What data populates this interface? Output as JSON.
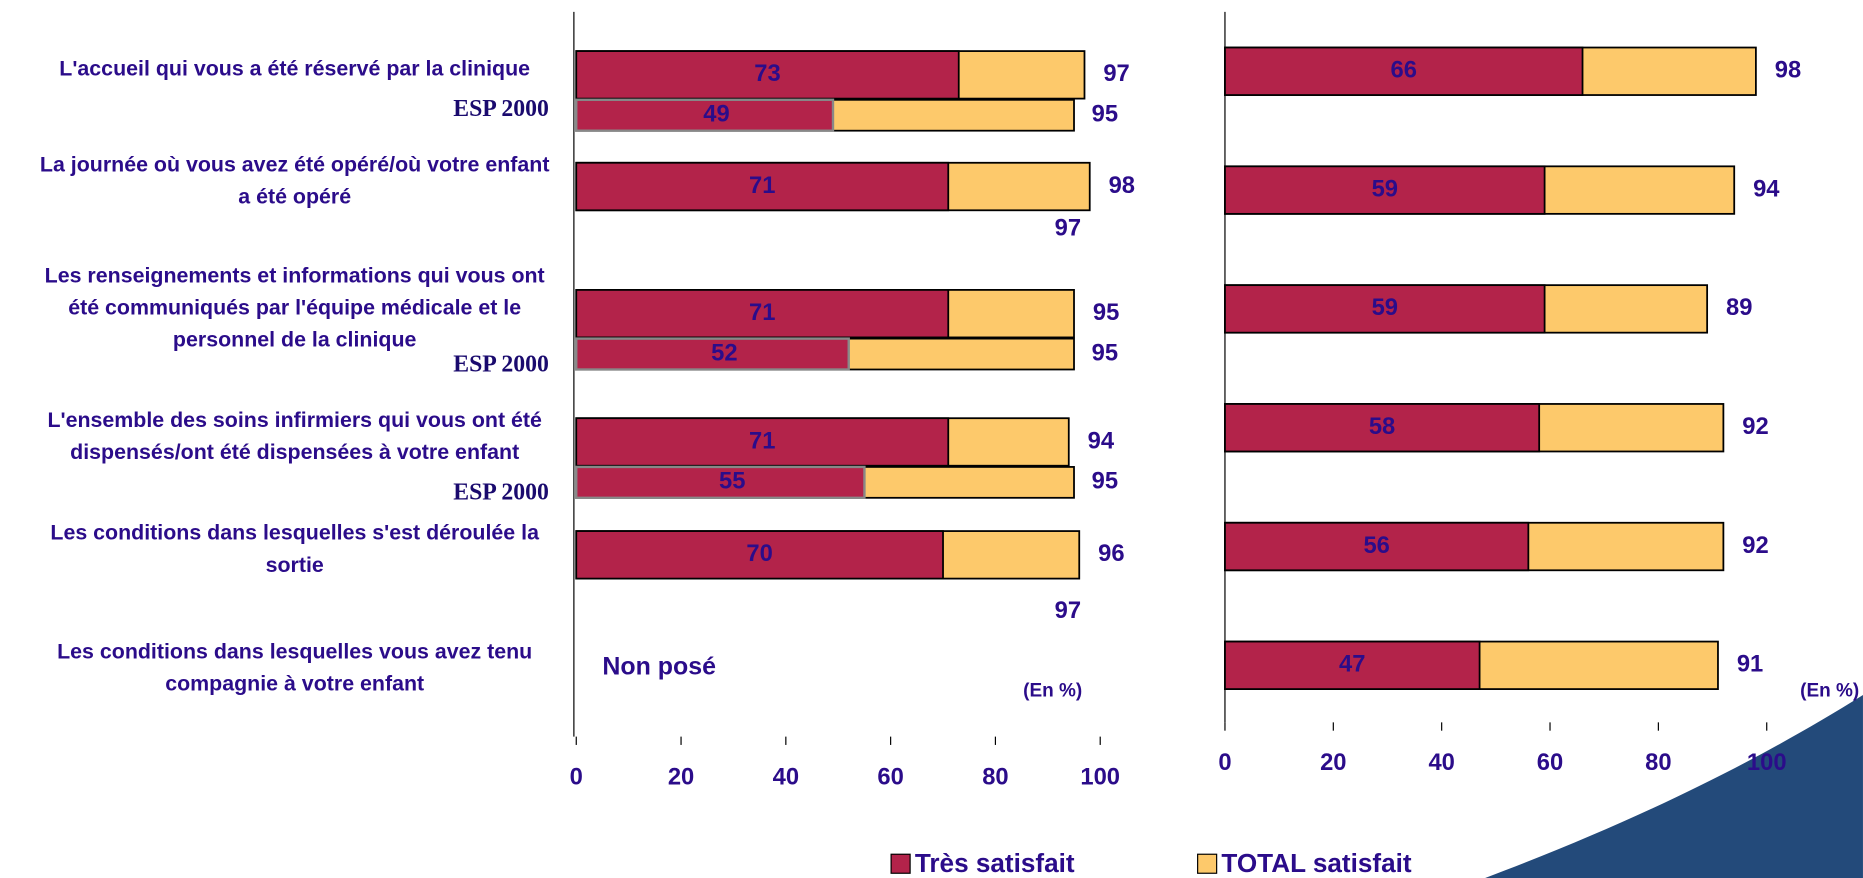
{
  "chart_data": [
    {
      "type": "bar",
      "orientation": "horizontal",
      "categories": [
        [
          "L'accueil qui vous a été réservé par la clinique"
        ],
        [
          "La journée où vous avez été opéré/où votre enfant",
          "a été opéré"
        ],
        [
          "Les renseignements et informations qui vous ont",
          "été communiqués par l'équipe médicale et le",
          "personnel de la clinique"
        ],
        [
          "L'ensemble des soins infirmiers qui vous ont été",
          "dispensés/ont été dispensées à votre enfant"
        ],
        [
          "Les conditions dans lesquelles s'est déroulée la",
          "sortie"
        ],
        [
          "Les conditions dans lesquelles vous avez tenu",
          "compagnie à votre enfant"
        ]
      ],
      "series": [
        {
          "name": "Très satisfait",
          "color": "#b3234a",
          "values": [
            73,
            71,
            71,
            71,
            70,
            null
          ]
        },
        {
          "name": "TOTAL satisfait",
          "color": "#fdc96b",
          "values": [
            97,
            98,
            95,
            94,
            96,
            null
          ]
        }
      ],
      "comparison": {
        "label": "ESP 2000",
        "series": [
          {
            "values": [
              49,
              null,
              52,
              55,
              null,
              null
            ]
          },
          {
            "values": [
              95,
              97,
              95,
              95,
              97,
              null
            ]
          }
        ]
      },
      "missing_label": "Non posé",
      "unit_note": "(En %)",
      "xlim": [
        0,
        100
      ],
      "xticks": [
        0,
        20,
        40,
        60,
        80,
        100
      ]
    },
    {
      "type": "bar",
      "orientation": "horizontal",
      "series": [
        {
          "color": "#b3234a",
          "values": [
            66,
            59,
            59,
            58,
            56,
            47
          ]
        },
        {
          "color": "#fdc96b",
          "values": [
            98,
            94,
            89,
            92,
            92,
            91
          ]
        }
      ],
      "unit_note": "(En %)",
      "xlim": [
        0,
        100
      ],
      "xticks": [
        0,
        20,
        40,
        60,
        80,
        100
      ]
    }
  ]
}
